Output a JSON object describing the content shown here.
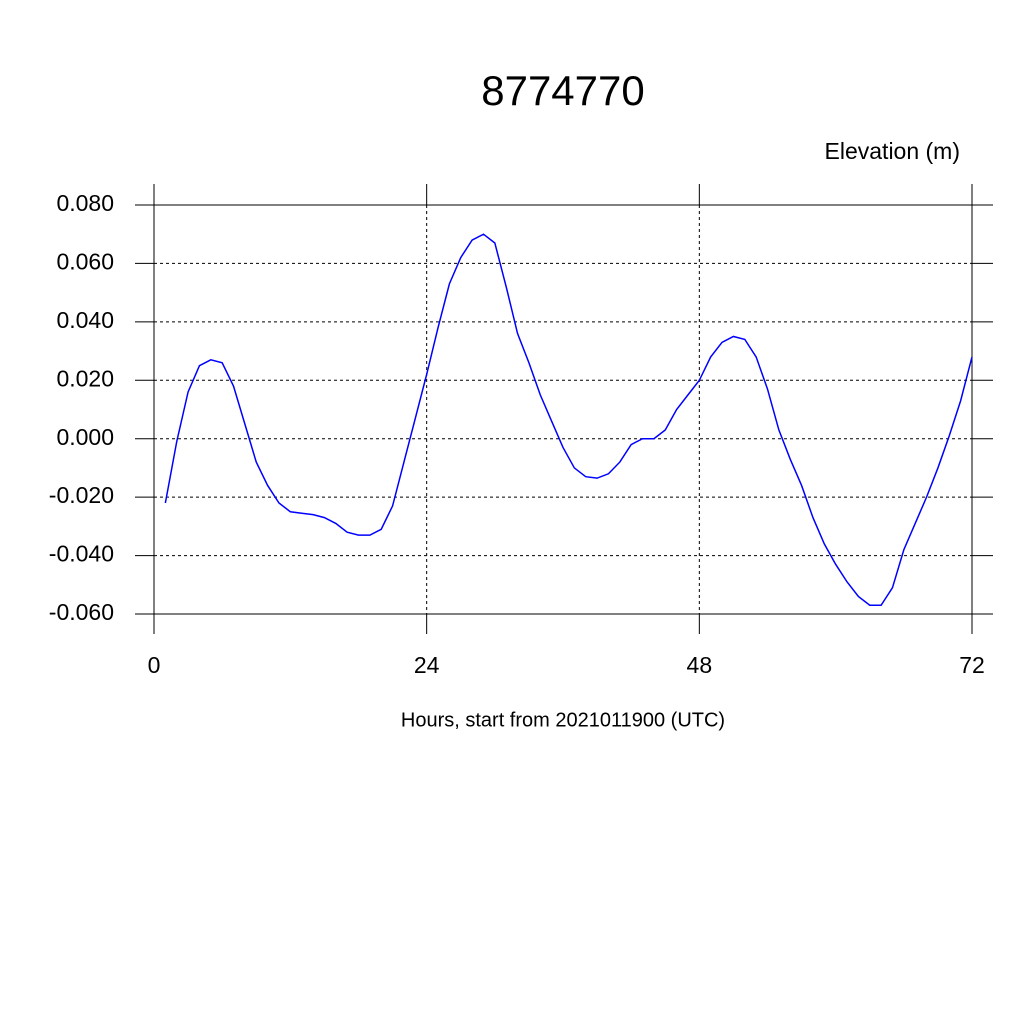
{
  "chart_data": {
    "type": "line",
    "title": "8774770",
    "subtitle": "Elevation (m)",
    "x_label": "Hours, start from 2021011900 (UTC)",
    "x": [
      1,
      2,
      3,
      4,
      5,
      6,
      7,
      8,
      9,
      10,
      11,
      12,
      13,
      14,
      15,
      16,
      17,
      18,
      19,
      20,
      21,
      22,
      23,
      24,
      25,
      26,
      27,
      28,
      29,
      30,
      31,
      32,
      33,
      34,
      35,
      36,
      37,
      38,
      39,
      40,
      41,
      42,
      43,
      44,
      45,
      46,
      47,
      48,
      49,
      50,
      51,
      52,
      53,
      54,
      55,
      56,
      57,
      58,
      59,
      60,
      61,
      62,
      63,
      64,
      65,
      66,
      67,
      68,
      69,
      70,
      71,
      72
    ],
    "series": [
      {
        "color": "#0000ff",
        "values": [
          -0.022,
          -0.001,
          0.016,
          0.025,
          0.027,
          0.026,
          0.018,
          0.005,
          -0.008,
          -0.016,
          -0.022,
          -0.025,
          -0.0255,
          -0.026,
          -0.027,
          -0.029,
          -0.032,
          -0.033,
          -0.033,
          -0.031,
          -0.023,
          -0.008,
          0.007,
          0.022,
          0.038,
          0.053,
          0.062,
          0.068,
          0.07,
          0.067,
          0.052,
          0.036,
          0.026,
          0.015,
          0.006,
          -0.003,
          -0.01,
          -0.013,
          -0.0135,
          -0.012,
          -0.008,
          -0.002,
          0.0,
          0.0,
          0.003,
          0.01,
          0.015,
          0.02,
          0.028,
          0.033,
          0.035,
          0.034,
          0.028,
          0.017,
          0.003,
          -0.007,
          -0.016,
          -0.027,
          -0.036,
          -0.043,
          -0.049,
          -0.054,
          -0.057,
          -0.057,
          -0.051,
          -0.038,
          -0.029,
          -0.02,
          -0.01,
          0.001,
          0.013,
          0.028
        ]
      }
    ],
    "xlim": [
      0,
      72
    ],
    "xticks": [
      0,
      24,
      48,
      72
    ],
    "ylim": [
      -0.06,
      0.08
    ],
    "yticks": [
      {
        "value": -0.06,
        "label": "-0.060"
      },
      {
        "value": -0.04,
        "label": "-0.040"
      },
      {
        "value": -0.02,
        "label": "-0.020"
      },
      {
        "value": 0,
        "label": "0.000"
      },
      {
        "value": 0.02,
        "label": "0.020"
      },
      {
        "value": 0.04,
        "label": "0.040"
      },
      {
        "value": 0.06,
        "label": "0.060"
      },
      {
        "value": 0.08,
        "label": "0.080"
      }
    ],
    "grid": true
  }
}
